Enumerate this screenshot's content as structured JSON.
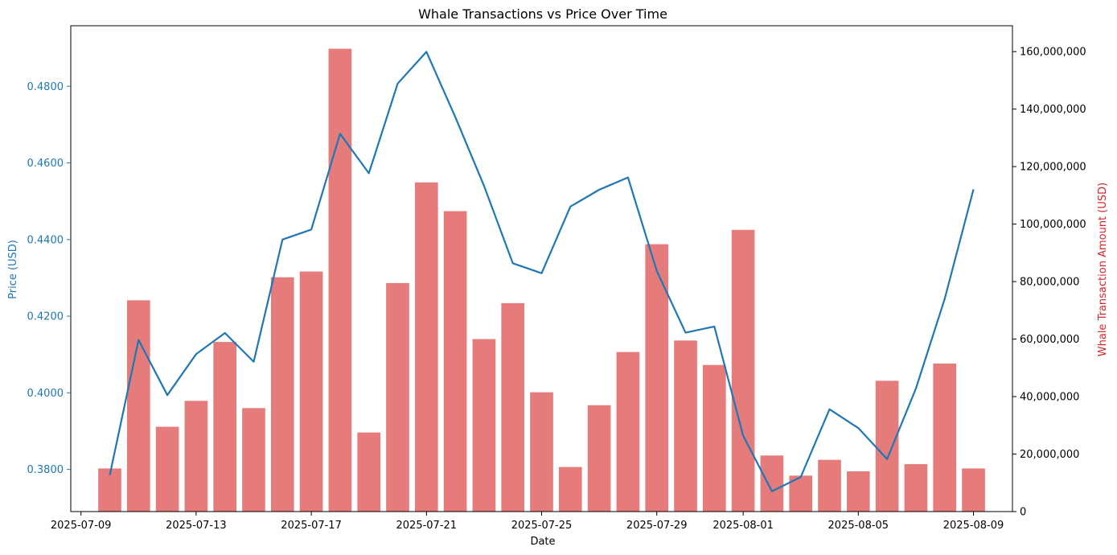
{
  "chart_data": {
    "type": "bar+line",
    "title": "Whale Transactions vs Price Over Time",
    "xlabel": "Date",
    "ylabel_left": "Price (USD)",
    "ylabel_right": "Whale Transaction Amount (USD)",
    "xlim": [
      "2025-07-08T15:30",
      "2025-08-10T08:30"
    ],
    "x_ticks": [
      "2025-07-09",
      "2025-07-13",
      "2025-07-17",
      "2025-07-21",
      "2025-07-25",
      "2025-07-29",
      "2025-08-01",
      "2025-08-05",
      "2025-08-09"
    ],
    "ylim_left": [
      0.369,
      0.4958
    ],
    "y_ticks_left": [
      "0.3800",
      "0.4000",
      "0.4200",
      "0.4400",
      "0.4600",
      "0.4800"
    ],
    "ylim_right": [
      0,
      169000000
    ],
    "y_ticks_right": [
      "0",
      "20,000,000",
      "40,000,000",
      "60,000,000",
      "80,000,000",
      "100,000,000",
      "120,000,000",
      "140,000,000",
      "160,000,000"
    ],
    "grid": false,
    "legend": "none",
    "colors": {
      "price_line": "#1f77b4",
      "whale_bars": "#e57b7b",
      "left_axis_text": "#1f77b4",
      "right_axis_text": "#d62728"
    },
    "dates": [
      "2025-07-10",
      "2025-07-11",
      "2025-07-12",
      "2025-07-13",
      "2025-07-14",
      "2025-07-15",
      "2025-07-16",
      "2025-07-17",
      "2025-07-18",
      "2025-07-19",
      "2025-07-20",
      "2025-07-21",
      "2025-07-22",
      "2025-07-23",
      "2025-07-24",
      "2025-07-25",
      "2025-07-26",
      "2025-07-27",
      "2025-07-28",
      "2025-07-29",
      "2025-07-30",
      "2025-07-31",
      "2025-08-01",
      "2025-08-02",
      "2025-08-03",
      "2025-08-04",
      "2025-08-05",
      "2025-08-06",
      "2025-08-07",
      "2025-08-08",
      "2025-08-09"
    ],
    "series": [
      {
        "kind": "line",
        "axis": "left",
        "values": [
          0.3785,
          0.4138,
          0.3994,
          0.4101,
          0.4156,
          0.4081,
          0.44,
          0.4426,
          0.4676,
          0.4573,
          0.4807,
          0.489,
          0.472,
          0.454,
          0.4338,
          0.4312,
          0.4486,
          0.453,
          0.4562,
          0.4318,
          0.4157,
          0.4173,
          0.3888,
          0.3743,
          0.378,
          0.3957,
          0.3908,
          0.3827,
          0.4011,
          0.4245,
          0.4531
        ]
      },
      {
        "kind": "bar",
        "axis": "right",
        "values": [
          15000000,
          73500000,
          29500000,
          38500000,
          59000000,
          36000000,
          81500000,
          83500000,
          161000000,
          27500000,
          79500000,
          114500000,
          104500000,
          60000000,
          72500000,
          41500000,
          15500000,
          37000000,
          55500000,
          93000000,
          59500000,
          51000000,
          98000000,
          19500000,
          12500000,
          18000000,
          14000000,
          45500000,
          16500000,
          51500000,
          15000000
        ]
      }
    ]
  }
}
